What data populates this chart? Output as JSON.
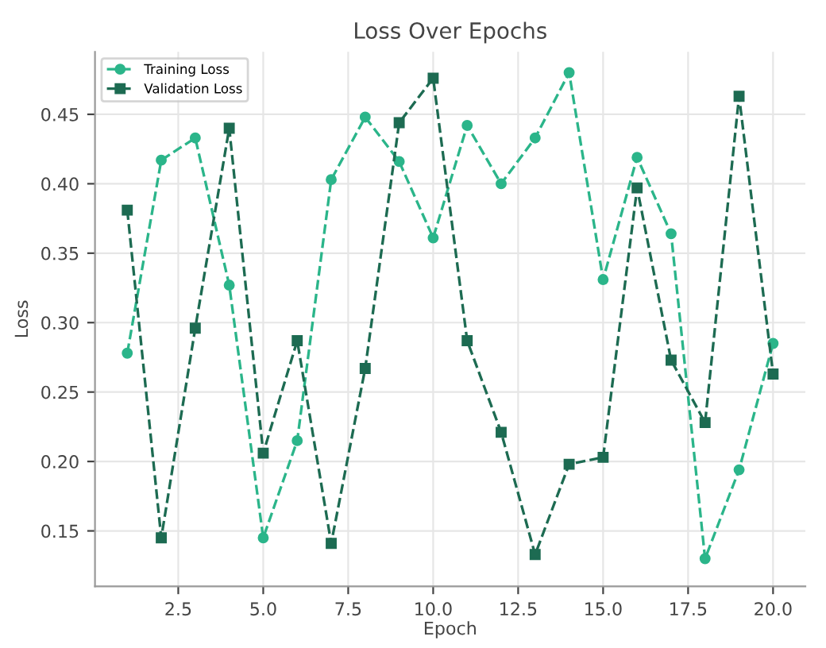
{
  "chart_data": {
    "type": "line",
    "title": "Loss Over Epochs",
    "xlabel": "Epoch",
    "ylabel": "Loss",
    "x": [
      1,
      2,
      3,
      4,
      5,
      6,
      7,
      8,
      9,
      10,
      11,
      12,
      13,
      14,
      15,
      16,
      17,
      18,
      19,
      20
    ],
    "series": [
      {
        "name": "Training Loss",
        "color": "#2bb58a",
        "marker": "circle",
        "values": [
          0.278,
          0.417,
          0.433,
          0.327,
          0.145,
          0.215,
          0.403,
          0.448,
          0.416,
          0.361,
          0.442,
          0.4,
          0.433,
          0.48,
          0.331,
          0.419,
          0.364,
          0.13,
          0.194,
          0.285
        ]
      },
      {
        "name": "Validation Loss",
        "color": "#1d6b52",
        "marker": "square",
        "values": [
          0.381,
          0.145,
          0.296,
          0.44,
          0.206,
          0.287,
          0.141,
          0.267,
          0.444,
          0.476,
          0.287,
          0.221,
          0.133,
          0.198,
          0.203,
          0.397,
          0.273,
          0.228,
          0.463,
          0.263
        ]
      }
    ],
    "xlim": [
      0.05,
      20.95
    ],
    "ylim": [
      0.11,
      0.495
    ],
    "xticks": [
      2.5,
      {
        "value": 5,
        "label": "5.0"
      },
      7.5,
      {
        "value": 10,
        "label": "10.0"
      },
      12.5,
      {
        "value": 15,
        "label": "15.0"
      },
      17.5,
      {
        "value": 20,
        "label": "20.0"
      }
    ],
    "yticks": [
      0.15,
      {
        "value": 0.2,
        "label": "0.20"
      },
      0.25,
      {
        "value": 0.3,
        "label": "0.30"
      },
      0.35,
      {
        "value": 0.4,
        "label": "0.40"
      },
      0.45
    ],
    "grid": true,
    "legend": "top left",
    "line_style": "dashed"
  }
}
